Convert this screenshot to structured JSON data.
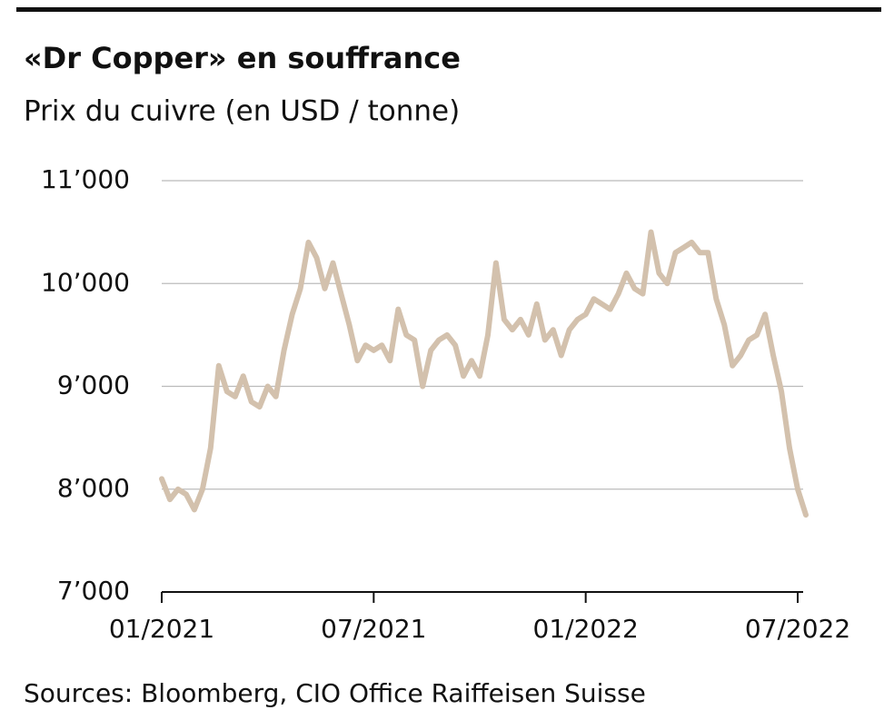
{
  "chart_data": {
    "type": "line",
    "title": "«Dr Copper» en souffrance",
    "subtitle": "Prix du cuivre (en USD / tonne)",
    "source": "Sources: Bloomberg, CIO Office Raiffeisen Suisse",
    "categories": [
      "01/2021",
      null,
      null,
      null,
      null,
      null,
      null,
      null,
      null,
      null,
      null,
      null,
      null,
      null,
      null,
      null,
      null,
      null,
      null,
      null,
      null,
      null,
      null,
      null,
      null,
      null,
      "07/2021",
      null,
      null,
      null,
      null,
      null,
      null,
      null,
      null,
      null,
      null,
      null,
      null,
      null,
      null,
      null,
      null,
      null,
      null,
      null,
      null,
      null,
      null,
      null,
      null,
      null,
      "01/2022",
      null,
      null,
      null,
      null,
      null,
      null,
      null,
      null,
      null,
      null,
      null,
      null,
      null,
      null,
      null,
      null,
      null,
      null,
      null,
      null,
      null,
      null,
      null,
      null,
      null,
      "07/2022",
      null
    ],
    "values": [
      8100,
      7900,
      8000,
      7950,
      7800,
      8000,
      8400,
      9200,
      8950,
      8900,
      9100,
      8850,
      8800,
      9000,
      8900,
      9350,
      9700,
      9950,
      10400,
      10250,
      9950,
      10200,
      9900,
      9600,
      9250,
      9400,
      9350,
      9400,
      9250,
      9750,
      9500,
      9450,
      9000,
      9350,
      9450,
      9500,
      9400,
      9100,
      9250,
      9100,
      9500,
      10200,
      9650,
      9550,
      9650,
      9500,
      9800,
      9450,
      9550,
      9300,
      9550,
      9650,
      9700,
      9850,
      9800,
      9750,
      9900,
      10100,
      9950,
      9900,
      10500,
      10100,
      10000,
      10300,
      10350,
      10400,
      10300,
      10300,
      9850,
      9600,
      9200,
      9300,
      9450,
      9500,
      9700,
      9300,
      8950,
      8400,
      8000,
      7750
    ],
    "color": "#d3c1ad",
    "ylim": [
      7000,
      11000
    ],
    "yticks": [
      {
        "value": 7000,
        "label": "7’000"
      },
      {
        "value": 8000,
        "label": "8’000"
      },
      {
        "value": 9000,
        "label": "9’000"
      },
      {
        "value": 10000,
        "label": "10’000"
      },
      {
        "value": 11000,
        "label": "11’000"
      }
    ],
    "grid": true
  }
}
